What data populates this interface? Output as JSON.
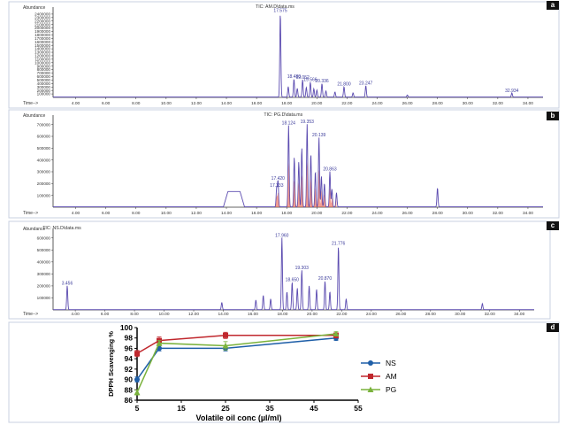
{
  "chart_data": [
    {
      "type": "line",
      "panel": "a",
      "title": "TIC: AM.D\\data.ms",
      "ylabel": "Abundance",
      "xlabel": "Time-->",
      "xlim": [
        2.5,
        35
      ],
      "ylim": [
        0,
        2500000
      ],
      "yticks": [
        100000,
        200000,
        300000,
        400000,
        500000,
        600000,
        700000,
        800000,
        900000,
        1000000,
        1100000,
        1200000,
        1300000,
        1400000,
        1500000,
        1600000,
        1700000,
        1800000,
        1900000,
        2000000,
        2100000,
        2200000,
        2300000,
        2400000
      ],
      "xticks": [
        "4.00",
        "6.00",
        "8.00",
        "10.00",
        "12.00",
        "14.00",
        "16.00",
        "18.00",
        "20.00",
        "22.00",
        "24.00",
        "26.00",
        "28.00",
        "30.00",
        "32.00",
        "34.00"
      ],
      "peaks": [
        {
          "label": "17.575",
          "x": 17.575,
          "y": 2420000
        },
        {
          "label": "18.480",
          "x": 18.48,
          "y": 520000
        },
        {
          "label": "19.052",
          "x": 19.052,
          "y": 500000
        },
        {
          "label": "19.566",
          "x": 19.566,
          "y": 430000
        },
        {
          "label": "20.336",
          "x": 20.336,
          "y": 390000
        },
        {
          "label": "21.800",
          "x": 21.8,
          "y": 300000
        },
        {
          "label": "23.247",
          "x": 23.247,
          "y": 330000
        },
        {
          "label": "32.934",
          "x": 32.934,
          "y": 120000
        }
      ],
      "extra_peaks": [
        [
          18.1,
          300000
        ],
        [
          18.7,
          250000
        ],
        [
          19.3,
          280000
        ],
        [
          19.8,
          240000
        ],
        [
          20.0,
          200000
        ],
        [
          20.6,
          180000
        ],
        [
          21.2,
          150000
        ],
        [
          22.4,
          120000
        ],
        [
          26.0,
          60000
        ]
      ]
    },
    {
      "type": "line",
      "panel": "b",
      "title": "TIC: PG.D\\data.ms",
      "ylabel": "Abundance",
      "xlabel": "Time-->",
      "xlim": [
        2.5,
        35
      ],
      "ylim": [
        0,
        750000
      ],
      "yticks": [
        100000,
        200000,
        300000,
        400000,
        500000,
        600000,
        700000
      ],
      "xticks": [
        "4.00",
        "6.00",
        "8.00",
        "10.00",
        "12.00",
        "14.00",
        "16.00",
        "18.00",
        "20.00",
        "22.00",
        "24.00",
        "26.00",
        "28.00",
        "30.00",
        "32.00",
        "34.00"
      ],
      "peaks": [
        {
          "label": "18.124",
          "x": 18.124,
          "y": 690000
        },
        {
          "label": "19.353",
          "x": 19.353,
          "y": 700000
        },
        {
          "label": "20.139",
          "x": 20.139,
          "y": 590000
        },
        {
          "label": "20.863",
          "x": 20.863,
          "y": 300000
        },
        {
          "label": "17.333",
          "x": 17.333,
          "y": 160000
        },
        {
          "label": "17.420",
          "x": 17.42,
          "y": 220000
        }
      ],
      "extra_peaks": [
        [
          18.5,
          420000
        ],
        [
          18.8,
          380000
        ],
        [
          19.0,
          500000
        ],
        [
          19.6,
          450000
        ],
        [
          19.9,
          300000
        ],
        [
          20.3,
          260000
        ],
        [
          20.5,
          200000
        ],
        [
          21.0,
          150000
        ],
        [
          21.3,
          120000
        ],
        [
          28.0,
          160000
        ]
      ],
      "broad_humps": [
        [
          13.8,
          15.2,
          130000
        ]
      ]
    },
    {
      "type": "line",
      "panel": "c",
      "title": "TIC: NS.D\\data.ms",
      "ylabel": "Abundance",
      "xlabel": "Time-->",
      "xlim": [
        2.5,
        35
      ],
      "ylim": [
        0,
        650000
      ],
      "yticks": [
        100000,
        200000,
        300000,
        400000,
        500000,
        600000
      ],
      "xticks": [
        "4.00",
        "6.00",
        "8.00",
        "10.00",
        "12.00",
        "14.00",
        "16.00",
        "18.00",
        "20.00",
        "22.00",
        "24.00",
        "26.00",
        "28.00",
        "30.00",
        "32.00",
        "34.00"
      ],
      "peaks": [
        {
          "label": "3.456",
          "x": 3.456,
          "y": 200000
        },
        {
          "label": "17.960",
          "x": 17.96,
          "y": 600000
        },
        {
          "label": "19.303",
          "x": 19.303,
          "y": 330000
        },
        {
          "label": "18.650",
          "x": 18.65,
          "y": 230000
        },
        {
          "label": "20.870",
          "x": 20.87,
          "y": 240000
        },
        {
          "label": "21.776",
          "x": 21.776,
          "y": 530000
        }
      ],
      "extra_peaks": [
        [
          16.2,
          80000
        ],
        [
          16.7,
          120000
        ],
        [
          17.2,
          90000
        ],
        [
          18.3,
          150000
        ],
        [
          19.0,
          180000
        ],
        [
          19.8,
          200000
        ],
        [
          20.3,
          170000
        ],
        [
          21.2,
          150000
        ],
        [
          22.3,
          90000
        ],
        [
          13.9,
          60000
        ],
        [
          31.5,
          50000
        ]
      ]
    },
    {
      "type": "line",
      "panel": "d",
      "title": "",
      "ylabel": "DPPH Scavenging %",
      "xlabel": "Volatile oil conc (µl/ml)",
      "xticks": [
        5,
        15,
        25,
        35,
        45,
        55
      ],
      "yticks": [
        86,
        88,
        90,
        92,
        94,
        96,
        98,
        100
      ],
      "xlim": [
        5,
        55
      ],
      "ylim": [
        86,
        100
      ],
      "x": [
        5,
        10,
        25,
        50
      ],
      "series": [
        {
          "name": "NS",
          "color": "#1f5fa8",
          "values": [
            90.0,
            96.0,
            96.0,
            98.0
          ],
          "errors": [
            0.5,
            0.5,
            0.5,
            0.5
          ]
        },
        {
          "name": "AM",
          "color": "#c0272d",
          "values": [
            95.0,
            97.5,
            98.5,
            98.5
          ],
          "errors": [
            0.6,
            0.7,
            0.6,
            0.5
          ]
        },
        {
          "name": "PG",
          "color": "#7ab23c",
          "values": [
            87.5,
            97.0,
            96.5,
            98.8
          ],
          "errors": [
            0.5,
            0.5,
            0.8,
            0.4
          ]
        }
      ],
      "legend_position": "right"
    }
  ],
  "panel_letters": [
    "a",
    "b",
    "c",
    "d"
  ]
}
